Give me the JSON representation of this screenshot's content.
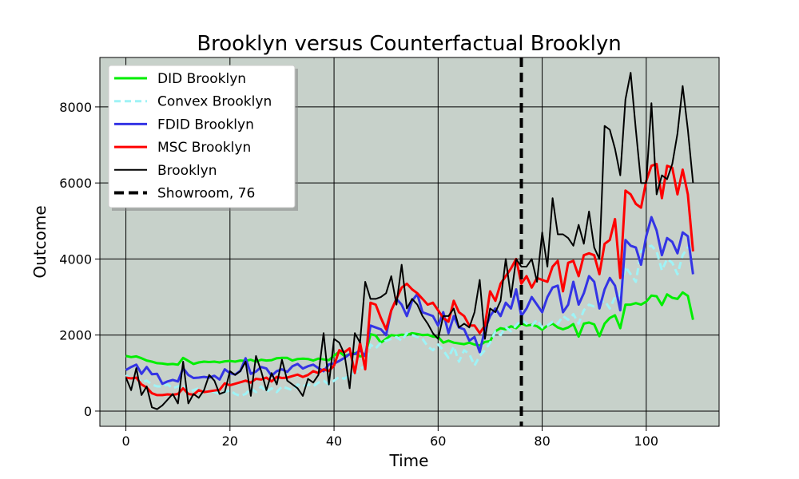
{
  "chart_data": {
    "type": "line",
    "title": "Brooklyn versus Counterfactual Brooklyn",
    "xlabel": "Time",
    "ylabel": "Outcome",
    "xlim": [
      -5,
      114
    ],
    "ylim": [
      -400,
      9300
    ],
    "xticks": [
      0,
      20,
      40,
      60,
      80,
      100
    ],
    "yticks": [
      0,
      2000,
      4000,
      6000,
      8000
    ],
    "grid": true,
    "legend_position": "top-left",
    "background_color": "#c7d1ca",
    "vline": {
      "x": 76,
      "label": "Showroom, 76",
      "color": "#000000",
      "style": "dashed"
    },
    "x": [
      0,
      1,
      2,
      3,
      4,
      5,
      6,
      7,
      8,
      9,
      10,
      11,
      12,
      13,
      14,
      15,
      16,
      17,
      18,
      19,
      20,
      21,
      22,
      23,
      24,
      25,
      26,
      27,
      28,
      29,
      30,
      31,
      32,
      33,
      34,
      35,
      36,
      37,
      38,
      39,
      40,
      41,
      42,
      43,
      44,
      45,
      46,
      47,
      48,
      49,
      50,
      51,
      52,
      53,
      54,
      55,
      56,
      57,
      58,
      59,
      60,
      61,
      62,
      63,
      64,
      65,
      66,
      67,
      68,
      69,
      70,
      71,
      72,
      73,
      74,
      75,
      76,
      77,
      78,
      79,
      80,
      81,
      82,
      83,
      84,
      85,
      86,
      87,
      88,
      89,
      90,
      91,
      92,
      93,
      94,
      95,
      96,
      97,
      98,
      99,
      100,
      101,
      102,
      103,
      104,
      105,
      106,
      107,
      108,
      109
    ],
    "series": [
      {
        "name": "DID Brooklyn",
        "color": "#00ee00",
        "style": "solid",
        "values": [
          1450,
          1420,
          1440,
          1390,
          1330,
          1300,
          1260,
          1250,
          1230,
          1240,
          1220,
          1400,
          1320,
          1240,
          1280,
          1300,
          1290,
          1300,
          1280,
          1310,
          1320,
          1300,
          1330,
          1320,
          1350,
          1300,
          1350,
          1330,
          1340,
          1390,
          1400,
          1400,
          1330,
          1370,
          1380,
          1370,
          1330,
          1380,
          1360,
          1340,
          1460,
          1560,
          1450,
          1490,
          1530,
          1440,
          1460,
          2020,
          1990,
          1800,
          1900,
          2000,
          1980,
          2010,
          2000,
          2050,
          2030,
          2000,
          2010,
          1960,
          1950,
          1800,
          1850,
          1800,
          1780,
          1760,
          1800,
          1750,
          1730,
          1820,
          1840,
          2100,
          2180,
          2150,
          2230,
          2180,
          2300,
          2250,
          2270,
          2230,
          2140,
          2250,
          2300,
          2200,
          2150,
          2200,
          2290,
          1960,
          2300,
          2330,
          2280,
          1970,
          2300,
          2450,
          2520,
          2180,
          2800,
          2800,
          2840,
          2800,
          2880,
          3040,
          3020,
          2790,
          3070,
          2980,
          2950,
          3120,
          3030,
          2400
        ]
      },
      {
        "name": "Convex Brooklyn",
        "color": "#9ff3f6",
        "style": "dashed",
        "values": [
          950,
          850,
          900,
          750,
          800,
          700,
          650,
          650,
          700,
          600,
          650,
          700,
          500,
          550,
          600,
          500,
          550,
          500,
          450,
          500,
          550,
          450,
          400,
          450,
          600,
          500,
          650,
          500,
          600,
          500,
          650,
          600,
          550,
          700,
          650,
          700,
          650,
          750,
          800,
          700,
          800,
          900,
          850,
          950,
          1000,
          1100,
          1200,
          1750,
          1650,
          1800,
          1850,
          1900,
          1950,
          1850,
          2050,
          2000,
          1950,
          1900,
          1700,
          1600,
          1750,
          1600,
          1400,
          1700,
          1300,
          1600,
          1500,
          1200,
          1450,
          1600,
          1800,
          2100,
          2000,
          2200,
          2100,
          2250,
          2400,
          2300,
          2250,
          2400,
          2200,
          2250,
          2350,
          2300,
          2500,
          2400,
          2550,
          2300,
          2650,
          2800,
          2750,
          2850,
          2900,
          2700,
          3000,
          3050,
          3800,
          3600,
          3400,
          4200,
          4300,
          4350,
          4200,
          3700,
          4000,
          3900,
          3600,
          4100,
          4300,
          4250
        ]
      },
      {
        "name": "FDID Brooklyn",
        "color": "#3434e5",
        "style": "solid",
        "values": [
          1080,
          1160,
          1220,
          980,
          1160,
          970,
          980,
          720,
          780,
          820,
          780,
          1130,
          950,
          870,
          880,
          900,
          880,
          930,
          830,
          1100,
          1000,
          960,
          1060,
          1390,
          980,
          1040,
          1160,
          1120,
          930,
          1050,
          1100,
          1030,
          1180,
          1240,
          1120,
          1180,
          1220,
          1130,
          1050,
          1230,
          1250,
          1320,
          1400,
          1500,
          1500,
          1600,
          1450,
          2250,
          2200,
          2150,
          2000,
          2650,
          2950,
          2800,
          2500,
          2900,
          3080,
          2600,
          2550,
          2500,
          2250,
          2600,
          2050,
          2500,
          2200,
          2150,
          1850,
          1950,
          1550,
          2150,
          2500,
          2700,
          2500,
          2850,
          2700,
          3200,
          2500,
          2700,
          3000,
          2800,
          2600,
          3000,
          3250,
          3300,
          2600,
          2800,
          3400,
          2800,
          3100,
          3550,
          3400,
          2700,
          3200,
          3500,
          3300,
          2650,
          4500,
          4350,
          4300,
          3850,
          4600,
          5100,
          4750,
          4100,
          4550,
          4450,
          4150,
          4700,
          4600,
          3600
        ]
      },
      {
        "name": "MSC Brooklyn",
        "color": "#ff0000",
        "style": "solid",
        "values": [
          880,
          860,
          880,
          700,
          620,
          470,
          420,
          420,
          440,
          430,
          450,
          600,
          450,
          430,
          550,
          500,
          520,
          540,
          560,
          730,
          680,
          720,
          760,
          800,
          750,
          850,
          830,
          880,
          780,
          900,
          870,
          880,
          920,
          960,
          900,
          950,
          1050,
          1000,
          1100,
          1050,
          1200,
          1600,
          1550,
          1650,
          1000,
          1800,
          1100,
          2850,
          2800,
          2450,
          2150,
          2650,
          2950,
          3250,
          3350,
          3200,
          3100,
          2950,
          2800,
          2850,
          2650,
          2450,
          2350,
          2900,
          2600,
          2500,
          2250,
          2250,
          2050,
          2250,
          3150,
          2900,
          3350,
          3550,
          3750,
          4000,
          3350,
          3550,
          3250,
          3500,
          3450,
          3400,
          3800,
          3950,
          3150,
          3900,
          3950,
          3550,
          4100,
          4150,
          4100,
          3600,
          4400,
          4500,
          5050,
          3500,
          5800,
          5700,
          5450,
          5350,
          6050,
          6450,
          6500,
          5600,
          6450,
          6400,
          5700,
          6350,
          5700,
          4200
        ]
      },
      {
        "name": "Brooklyn",
        "color": "#000000",
        "style": "solid",
        "values": [
          880,
          550,
          1130,
          420,
          650,
          100,
          50,
          150,
          300,
          450,
          200,
          1300,
          200,
          450,
          350,
          550,
          950,
          800,
          450,
          500,
          1050,
          950,
          1050,
          1300,
          400,
          1450,
          1050,
          550,
          1000,
          700,
          1350,
          800,
          700,
          600,
          400,
          850,
          750,
          950,
          2050,
          700,
          1900,
          1800,
          1500,
          600,
          2050,
          1800,
          3400,
          2950,
          2950,
          3000,
          3100,
          3550,
          2800,
          3850,
          2700,
          2950,
          2800,
          2500,
          2300,
          2050,
          1900,
          2500,
          2500,
          2700,
          2200,
          2300,
          2200,
          2600,
          3450,
          1900,
          2700,
          2600,
          2900,
          4000,
          3000,
          4000,
          3800,
          3800,
          4000,
          3400,
          4700,
          3800,
          5600,
          4650,
          4650,
          4550,
          4350,
          4900,
          4400,
          5250,
          4300,
          4000,
          7500,
          7400,
          6900,
          6200,
          8200,
          8900,
          7400,
          6000,
          6000,
          8100,
          5700,
          6200,
          6100,
          6500,
          7300,
          8550,
          7400,
          6000
        ]
      }
    ]
  }
}
